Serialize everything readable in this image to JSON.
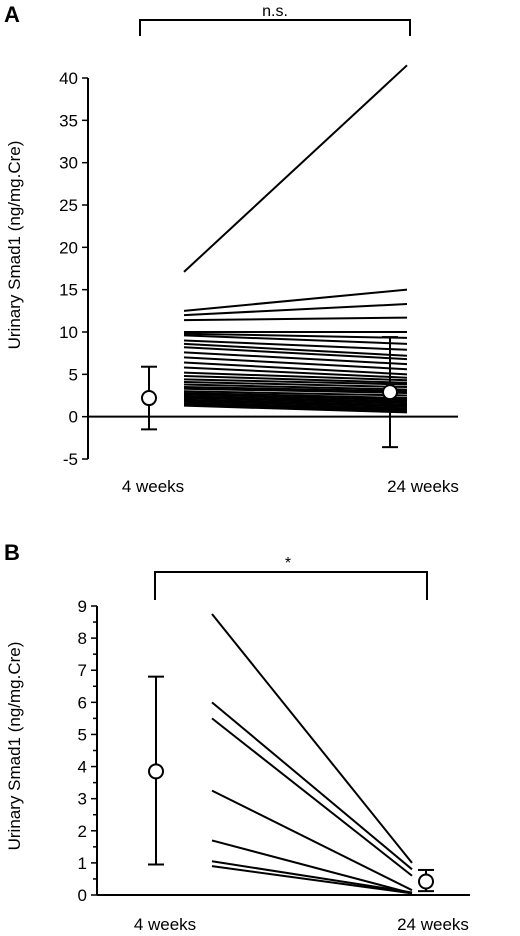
{
  "chart_data": [
    {
      "panel_label": "A",
      "type": "line",
      "ylabel": "Urinary Smad1 (ng/mg.Cre)",
      "ylim": [
        -5,
        40
      ],
      "yticks": [
        -5,
        0,
        5,
        10,
        15,
        20,
        25,
        30,
        35,
        40
      ],
      "categories": [
        "4 weeks",
        "24 weeks"
      ],
      "significance": "n.s.",
      "summary": [
        {
          "category": "4 weeks",
          "mean": 2.2,
          "err_low": -1.5,
          "err_high": 5.9
        },
        {
          "category": "24 weeks",
          "mean": 2.9,
          "err_low": -3.6,
          "err_high": 9.4
        }
      ],
      "individuals": [
        [
          17.1,
          41.5
        ],
        [
          12.5,
          15.0
        ],
        [
          12.0,
          13.3
        ],
        [
          11.4,
          11.7
        ],
        [
          10.0,
          10.0
        ],
        [
          9.8,
          9.3
        ],
        [
          9.6,
          8.6
        ],
        [
          9.0,
          7.9
        ],
        [
          8.6,
          7.2
        ],
        [
          8.2,
          6.8
        ],
        [
          7.6,
          6.2
        ],
        [
          7.0,
          5.6
        ],
        [
          6.4,
          5.0
        ],
        [
          5.8,
          4.6
        ],
        [
          5.2,
          4.3
        ],
        [
          4.8,
          4.0
        ],
        [
          4.4,
          3.8
        ],
        [
          4.1,
          3.5
        ],
        [
          3.8,
          3.2
        ],
        [
          3.5,
          3.0
        ],
        [
          3.3,
          2.8
        ],
        [
          3.0,
          2.5
        ],
        [
          2.8,
          2.2
        ],
        [
          2.6,
          2.0
        ],
        [
          2.4,
          1.8
        ],
        [
          2.2,
          1.6
        ],
        [
          2.0,
          1.4
        ],
        [
          1.8,
          1.2
        ],
        [
          1.6,
          1.0
        ],
        [
          1.5,
          0.8
        ],
        [
          1.4,
          0.6
        ],
        [
          1.3,
          0.5
        ]
      ]
    },
    {
      "panel_label": "B",
      "type": "line",
      "ylabel": "Urinary Smad1 (ng/mg.Cre)",
      "ylim": [
        0,
        9
      ],
      "yticks": [
        0,
        1,
        2,
        3,
        4,
        5,
        6,
        7,
        8,
        9
      ],
      "categories": [
        "4 weeks",
        "24 weeks"
      ],
      "significance": "*",
      "summary": [
        {
          "category": "4 weeks",
          "mean": 3.85,
          "err_low": 0.95,
          "err_high": 6.8
        },
        {
          "category": "24 weeks",
          "mean": 0.42,
          "err_low": 0.12,
          "err_high": 0.78
        }
      ],
      "individuals": [
        [
          8.75,
          1.0
        ],
        [
          6.0,
          0.8
        ],
        [
          5.5,
          0.6
        ],
        [
          3.25,
          0.15
        ],
        [
          1.7,
          0.05
        ],
        [
          1.05,
          0.08
        ],
        [
          0.9,
          0.05
        ]
      ]
    }
  ]
}
